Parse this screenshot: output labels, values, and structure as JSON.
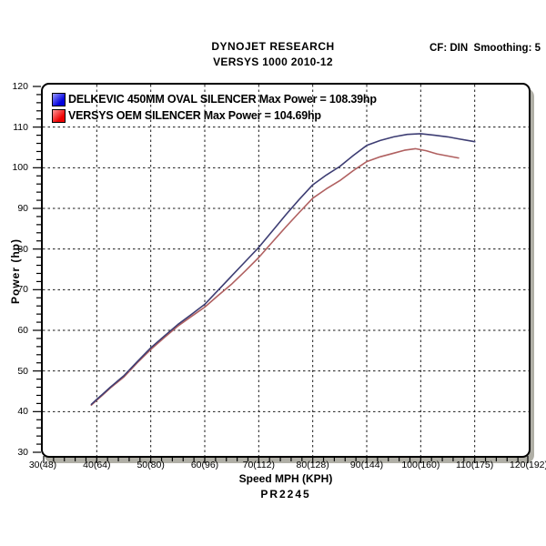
{
  "header": {
    "title": "DYNOJET RESEARCH",
    "subtitle": "VERSYS 1000 2010-12",
    "cf_label": "CF: DIN  Smoothing: 5"
  },
  "footer": {
    "xlabel": "Speed MPH (KPH)",
    "run_id": "PR2245"
  },
  "y_axis_title": "Power (hp)",
  "legend": [
    {
      "label": "DELKEVIC 450MM OVAL SILENCER Max Power = 108.39hp",
      "swatch_from": "#9999ff",
      "swatch_to": "#0000dd"
    },
    {
      "label": "VERSYS OEM SILENCER Max Power = 104.69hp",
      "swatch_from": "#ff9999",
      "swatch_to": "#ee0000"
    }
  ],
  "chart_data": {
    "type": "line",
    "title": "VERSYS 1000 2010-12",
    "xlabel": "Speed MPH (KPH)",
    "ylabel": "Power (hp)",
    "xlim": [
      30,
      120
    ],
    "ylim": [
      30,
      120
    ],
    "x_major_step": 10,
    "x_minor_step": 2,
    "y_major_step": 10,
    "y_minor_step": 2,
    "grid": "dashed major both axes",
    "legend_position": "top-left inside",
    "x_tick_labels": [
      "30(48)",
      "40(64)",
      "50(80)",
      "60(96)",
      "70(112)",
      "80(128)",
      "90(144)",
      "100(160)",
      "110(175)",
      "120(192)"
    ],
    "y_tick_labels": [
      "120",
      "110",
      "100",
      "90",
      "80",
      "70",
      "60",
      "50",
      "40",
      "30"
    ],
    "grid_color": "#1a1a1a",
    "series": [
      {
        "id": "delkevic-450mm-oval",
        "name": "DELKEVIC 450MM OVAL SILENCER",
        "max_power_hp": 108.39,
        "color": "#3d3d73",
        "points": [
          [
            39,
            41.8
          ],
          [
            40,
            43.0
          ],
          [
            41,
            44.2
          ],
          [
            42.5,
            46.0
          ],
          [
            45,
            48.8
          ],
          [
            47.5,
            52.3
          ],
          [
            50,
            55.7
          ],
          [
            52.5,
            58.6
          ],
          [
            55,
            61.4
          ],
          [
            57.5,
            63.9
          ],
          [
            60,
            66.4
          ],
          [
            62.5,
            69.9
          ],
          [
            65,
            73.4
          ],
          [
            67.5,
            76.9
          ],
          [
            70,
            80.4
          ],
          [
            72.5,
            84.4
          ],
          [
            75,
            88.4
          ],
          [
            77.5,
            92.2
          ],
          [
            80,
            95.8
          ],
          [
            82.5,
            98.2
          ],
          [
            85,
            100.3
          ],
          [
            87.5,
            103.0
          ],
          [
            90,
            105.5
          ],
          [
            92.5,
            106.7
          ],
          [
            95,
            107.6
          ],
          [
            97.5,
            108.2
          ],
          [
            100,
            108.39
          ],
          [
            102.5,
            108.0
          ],
          [
            105,
            107.6
          ],
          [
            107.5,
            107.0
          ],
          [
            110,
            106.4
          ]
        ]
      },
      {
        "id": "versys-oem",
        "name": "VERSYS OEM SILENCER",
        "max_power_hp": 104.69,
        "color": "#b06060",
        "points": [
          [
            39,
            41.6
          ],
          [
            40,
            42.8
          ],
          [
            41,
            44.0
          ],
          [
            42.5,
            45.8
          ],
          [
            45,
            48.5
          ],
          [
            47.5,
            52.0
          ],
          [
            50,
            55.3
          ],
          [
            52.5,
            58.2
          ],
          [
            55,
            61.0
          ],
          [
            57.5,
            63.4
          ],
          [
            60,
            65.7
          ],
          [
            62.5,
            68.6
          ],
          [
            65,
            71.4
          ],
          [
            67.5,
            74.6
          ],
          [
            70,
            77.9
          ],
          [
            72.5,
            81.7
          ],
          [
            75,
            85.4
          ],
          [
            77.5,
            89.0
          ],
          [
            80,
            92.5
          ],
          [
            82.5,
            94.8
          ],
          [
            85,
            96.8
          ],
          [
            87.5,
            99.3
          ],
          [
            90,
            101.5
          ],
          [
            92.5,
            102.7
          ],
          [
            95,
            103.6
          ],
          [
            97,
            104.3
          ],
          [
            99,
            104.69
          ],
          [
            101,
            104.2
          ],
          [
            103,
            103.4
          ],
          [
            105,
            102.9
          ],
          [
            107,
            102.4
          ]
        ]
      }
    ]
  }
}
